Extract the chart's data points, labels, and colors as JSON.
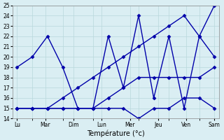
{
  "title": "",
  "xlabel": "Température (°c)",
  "ylabel": "",
  "background_color": "#daeef3",
  "grid_color": "#b8d8dc",
  "line_color": "#0000aa",
  "ylim": [
    14,
    25
  ],
  "yticks": [
    14,
    15,
    16,
    17,
    18,
    19,
    20,
    21,
    22,
    23,
    24,
    25
  ],
  "xlim": [
    -0.3,
    13.3
  ],
  "x_tick_labels": [
    "Lu",
    "Mar",
    "Dim",
    "Lun",
    "Mer",
    "Jeu",
    "Ven",
    "Sam"
  ],
  "series": [
    {
      "x": [
        0,
        1,
        2,
        3,
        4,
        5,
        6,
        7,
        8,
        9,
        10,
        11,
        12,
        13
      ],
      "y": [
        19,
        20,
        22,
        19,
        15,
        15,
        22,
        17,
        24,
        16,
        22,
        15,
        22,
        20
      ]
    },
    {
      "x": [
        0,
        1,
        2,
        3,
        4,
        5,
        6,
        7,
        8,
        9,
        10,
        11,
        12,
        13
      ],
      "y": [
        15,
        15,
        15,
        15,
        15,
        15,
        15,
        15,
        14,
        15,
        15,
        16,
        16,
        15
      ]
    },
    {
      "x": [
        0,
        1,
        2,
        3,
        4,
        5,
        6,
        7,
        8,
        9,
        10,
        11,
        12,
        13
      ],
      "y": [
        15,
        15,
        15,
        16,
        17,
        18,
        19,
        20,
        21,
        22,
        23,
        24,
        22,
        25
      ]
    },
    {
      "x": [
        0,
        1,
        2,
        3,
        4,
        5,
        6,
        7,
        8,
        9,
        10,
        11,
        12,
        13
      ],
      "y": [
        15,
        15,
        15,
        15,
        15,
        15,
        16,
        17,
        18,
        18,
        18,
        18,
        18,
        19
      ]
    }
  ],
  "marker": "D",
  "marker_size": 2.5,
  "line_width": 1.0
}
